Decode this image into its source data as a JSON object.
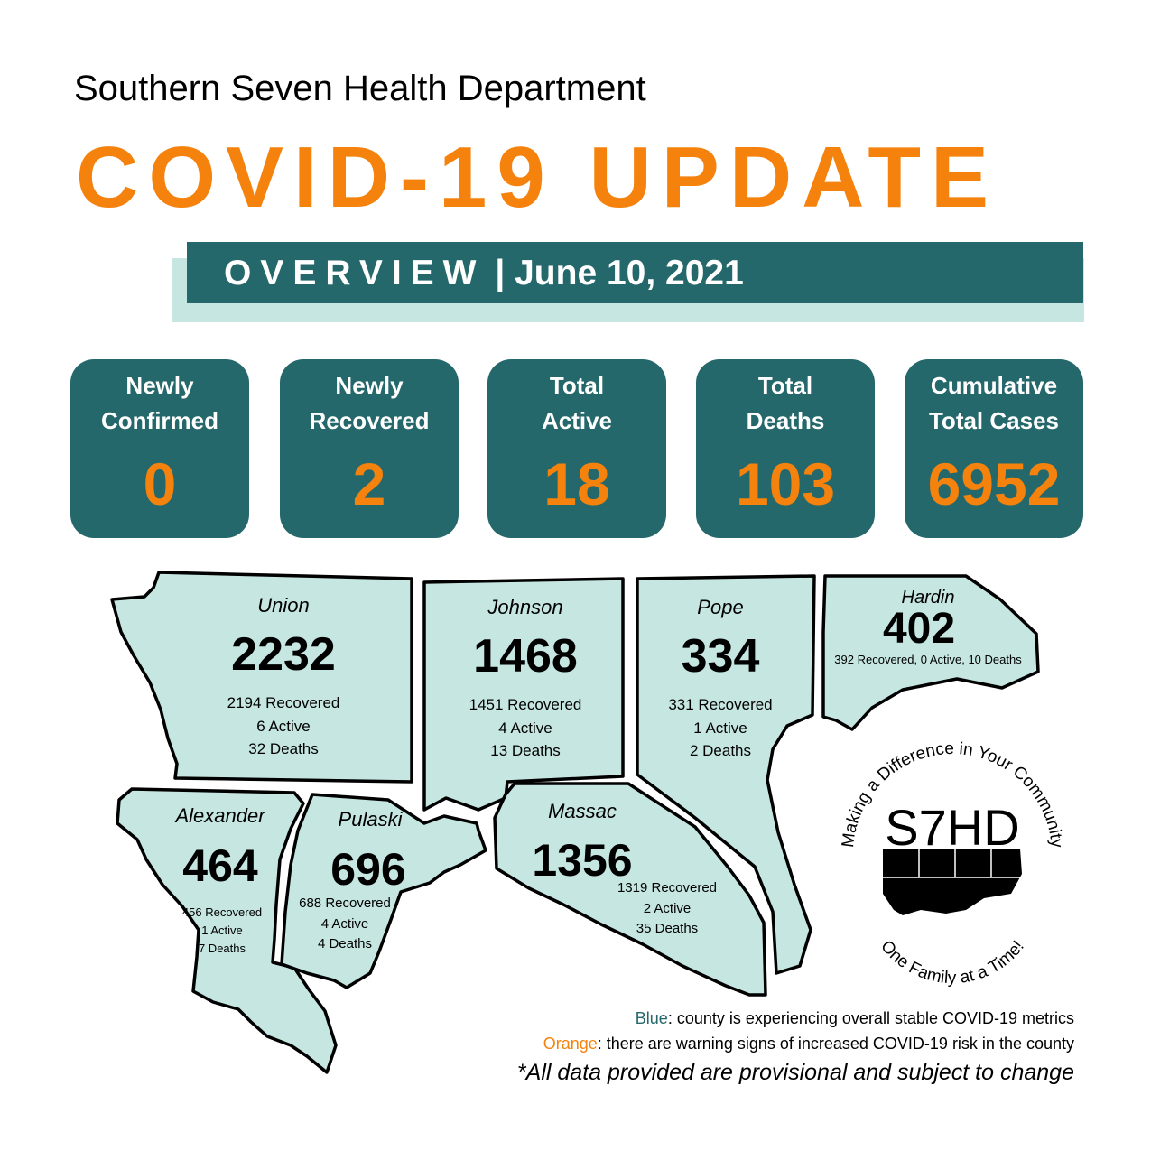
{
  "header": {
    "organization": "Southern Seven Health Department",
    "title": "COVID-19 UPDATE",
    "banner_label": "OVERVIEW",
    "banner_separator": "|",
    "banner_date": "June 10, 2021"
  },
  "summary_cards": [
    {
      "label": "Newly\nConfirmed",
      "value": "0"
    },
    {
      "label": "Newly\nRecovered",
      "value": "2"
    },
    {
      "label": "Total\nActive",
      "value": "18"
    },
    {
      "label": "Total\nDeaths",
      "value": "103"
    },
    {
      "label": "Cumulative\nTotal Cases",
      "value": "6952"
    }
  ],
  "counties": {
    "union": {
      "name": "Union",
      "total": "2232",
      "recovered": "2194 Recovered",
      "active": "6 Active",
      "deaths": "32 Deaths"
    },
    "johnson": {
      "name": "Johnson",
      "total": "1468",
      "recovered": "1451 Recovered",
      "active": "4 Active",
      "deaths": "13 Deaths"
    },
    "pope": {
      "name": "Pope",
      "total": "334",
      "recovered": "331 Recovered",
      "active": "1 Active",
      "deaths": "2 Deaths"
    },
    "hardin": {
      "name": "Hardin",
      "total": "402",
      "summary": "392 Recovered, 0 Active, 10 Deaths"
    },
    "alexander": {
      "name": "Alexander",
      "total": "464",
      "recovered": "456 Recovered",
      "active": "1 Active",
      "deaths": "7 Deaths"
    },
    "pulaski": {
      "name": "Pulaski",
      "total": "696",
      "recovered": "688 Recovered",
      "active": "4 Active",
      "deaths": "4 Deaths"
    },
    "massac": {
      "name": "Massac",
      "total": "1356",
      "recovered": "1319 Recovered",
      "active": "2 Active",
      "deaths": "35 Deaths"
    }
  },
  "logo": {
    "text": "S7HD",
    "slogan_top": "Making a Difference in Your Community",
    "slogan_bottom": "One Family at a Time!"
  },
  "legend": {
    "blue_word": "Blue",
    "blue_text": ": county is experiencing overall stable COVID-19 metrics",
    "orange_word": "Orange",
    "orange_text": ": there are warning signs of increased COVID-19 risk in the county"
  },
  "disclaimer": "*All data provided are provisional and subject to change",
  "colors": {
    "brand_orange": "#f5820d",
    "brand_teal": "#25686b",
    "county_fill": "#c5e6e1",
    "banner_shadow": "#c5e6e1"
  }
}
